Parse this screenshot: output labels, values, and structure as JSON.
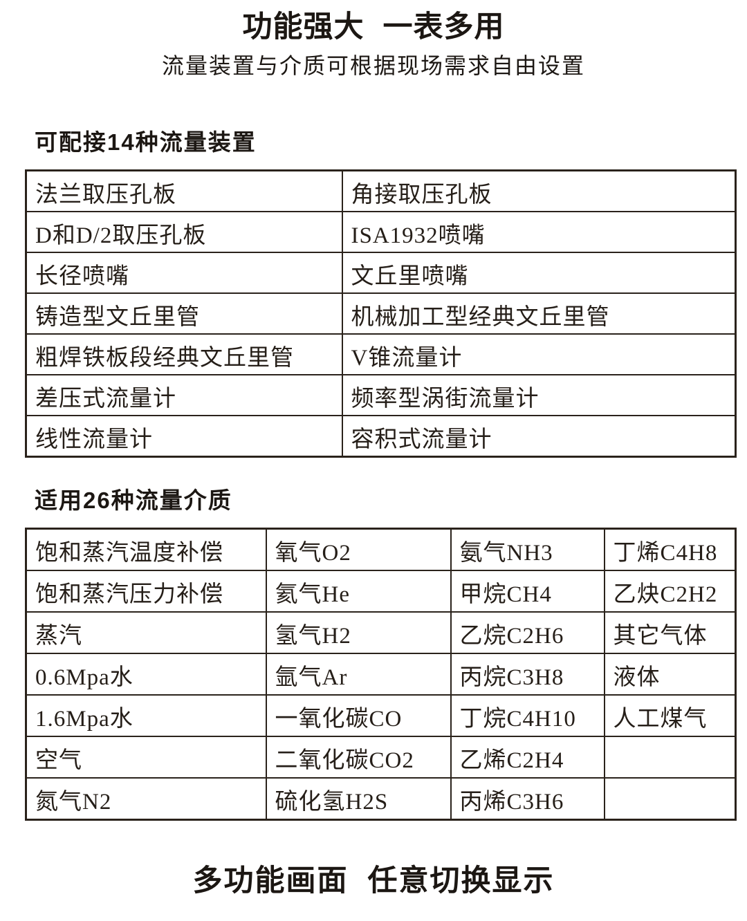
{
  "page": {
    "title": "功能强大 一表多用",
    "subtitle": "流量装置与介质可根据现场需求自由设置",
    "footer_title": "多功能画面 任意切换显示"
  },
  "device_section": {
    "heading": "可配接14种流量装置",
    "device_count": 14,
    "rows": [
      [
        "法兰取压孔板",
        "角接取压孔板"
      ],
      [
        "D和D/2取压孔板",
        "ISA1932喷嘴"
      ],
      [
        "长径喷嘴",
        "文丘里喷嘴"
      ],
      [
        "铸造型文丘里管",
        "机械加工型经典文丘里管"
      ],
      [
        "粗焊铁板段经典文丘里管",
        "V锥流量计"
      ],
      [
        "差压式流量计",
        "频率型涡街流量计"
      ],
      [
        "线性流量计",
        "容积式流量计"
      ]
    ]
  },
  "media_section": {
    "heading": "适用26种流量介质",
    "media_count": 26,
    "rows": [
      [
        "饱和蒸汽温度补偿",
        "氧气O2",
        "氨气NH3",
        "丁烯C4H8"
      ],
      [
        "饱和蒸汽压力补偿",
        "氦气He",
        "甲烷CH4",
        "乙炔C2H2"
      ],
      [
        "蒸汽",
        "氢气H2",
        "乙烷C2H6",
        "其它气体"
      ],
      [
        "0.6Mpa水",
        "氩气Ar",
        "丙烷C3H8",
        "液体"
      ],
      [
        "1.6Mpa水",
        "一氧化碳CO",
        "丁烷C4H10",
        "人工煤气"
      ],
      [
        "空气",
        "二氧化碳CO2",
        "乙烯C2H4",
        ""
      ],
      [
        "氮气N2",
        "硫化氢H2S",
        "丙烯C3H6",
        ""
      ]
    ]
  },
  "colors": {
    "text": "#251e18",
    "border": "#2a221b",
    "background": "#ffffff"
  }
}
